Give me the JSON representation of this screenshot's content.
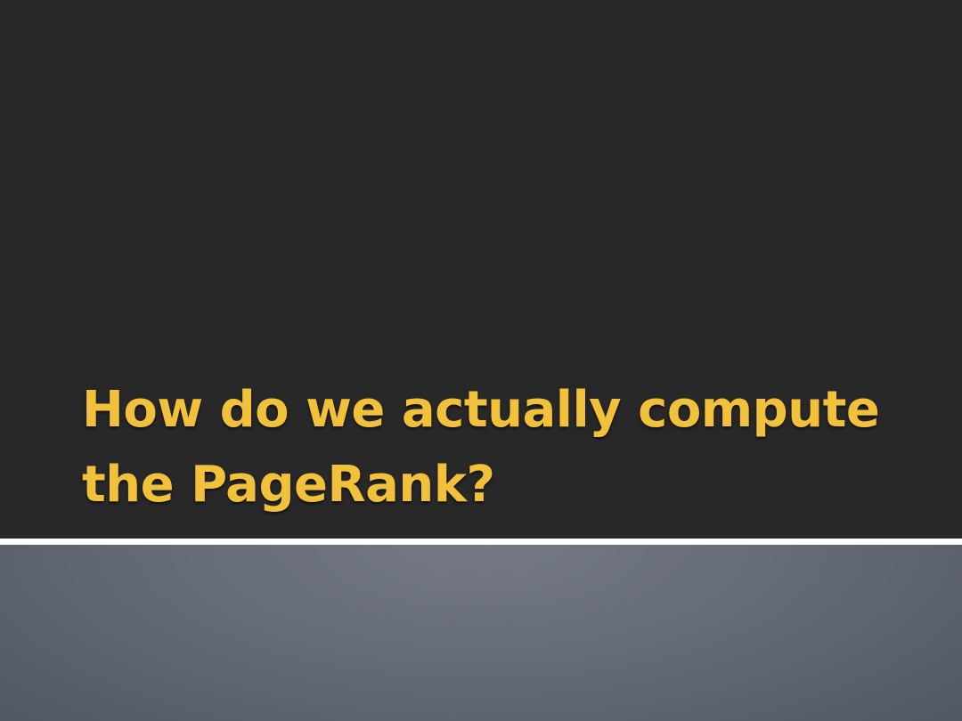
{
  "slide": {
    "title_line1": "How do we actually compute",
    "title_line2": "the PageRank?"
  },
  "colors": {
    "background": "#282828",
    "title": "#f2c13c",
    "divider": "#ffffff",
    "footer_gradient_center": "#747985",
    "footer_gradient_edge": "#4e5361"
  }
}
